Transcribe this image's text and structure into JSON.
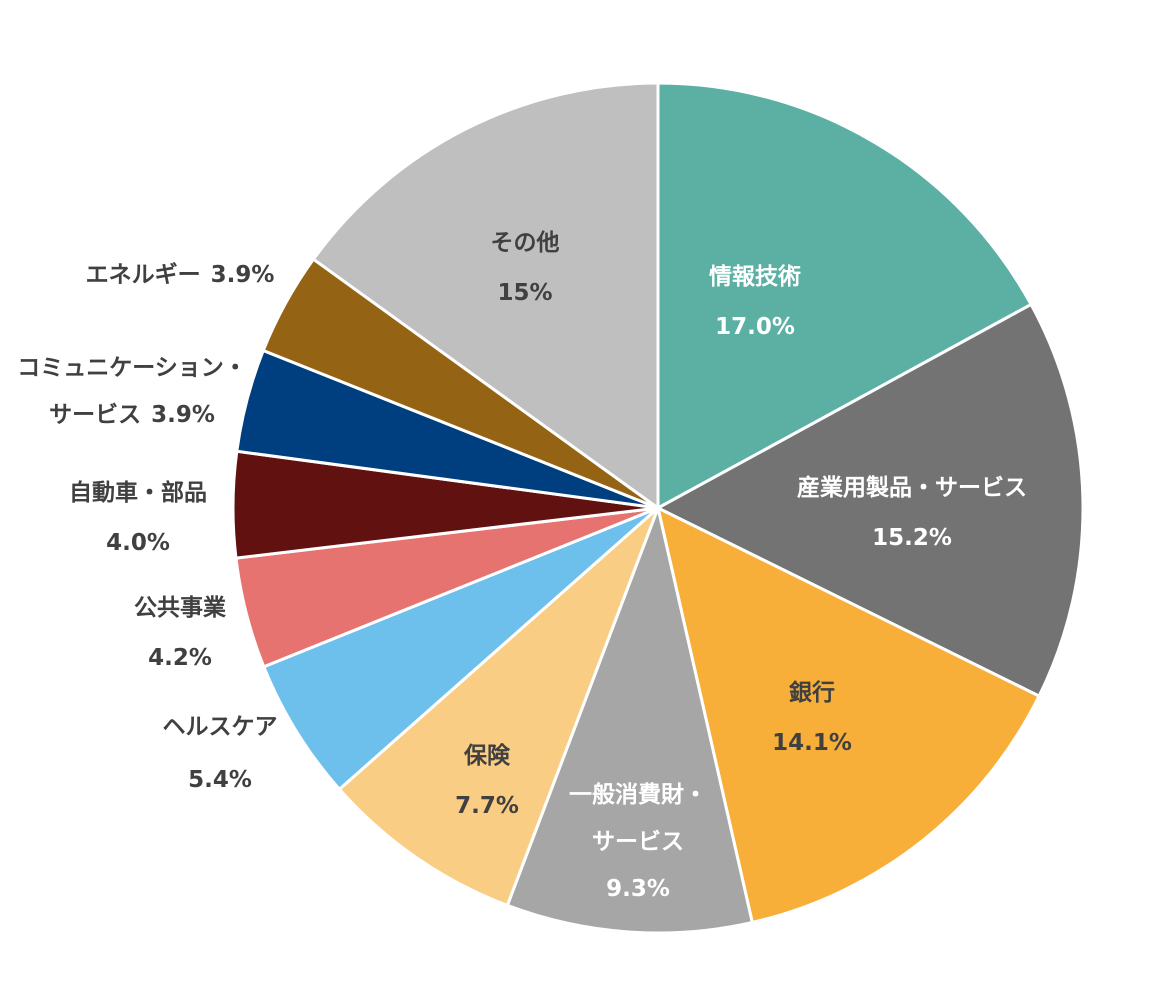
{
  "chart_data": {
    "type": "pie",
    "categories": [
      [
        "情報技術"
      ],
      [
        "産業用製品・サービス"
      ],
      [
        "銀行"
      ],
      [
        "一般消費財・",
        "サービス"
      ],
      [
        "保険"
      ],
      [
        "ヘルスケア"
      ],
      [
        "公共事業"
      ],
      [
        "自動車・部品"
      ],
      [
        "コミュニケーション・",
        "サービス"
      ],
      [
        "エネルギー"
      ],
      [
        "その他"
      ]
    ],
    "values": [
      17.0,
      15.2,
      14.1,
      9.3,
      7.7,
      5.4,
      4.2,
      4.0,
      3.9,
      3.9,
      15
    ],
    "value_labels": [
      "17.0%",
      "15.2%",
      "14.1%",
      "9.3%",
      "7.7%",
      "5.4%",
      "4.2%",
      "4.0%",
      "3.9%",
      "3.9%",
      "15%"
    ],
    "colors": [
      "#5BAFA3",
      "#737373",
      "#F8AF3A",
      "#A6A6A6",
      "#FACD84",
      "#6DBFEC",
      "#E77370",
      "#621111",
      "#003F7F",
      "#946414",
      "#BFBFBF"
    ]
  }
}
